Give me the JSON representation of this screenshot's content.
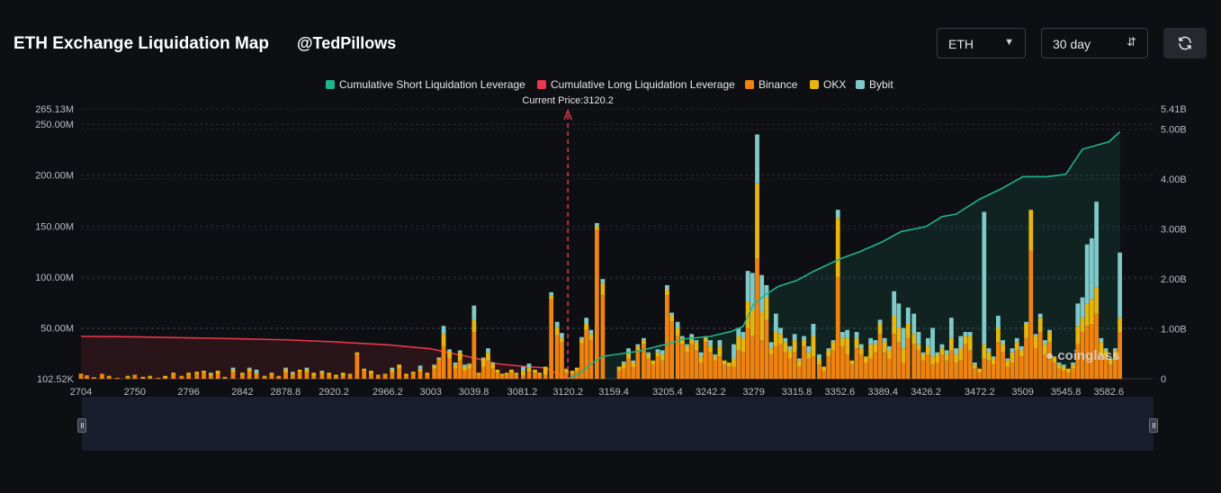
{
  "header": {
    "title": "ETH Exchange Liquidation Map",
    "watermark": "@TedPillows",
    "coin_select": "ETH",
    "range_select": "30 day"
  },
  "legend": {
    "short": "Cumulative Short Liquidation Leverage",
    "long": "Cumulative Long Liquidation Leverage",
    "binance": "Binance",
    "okx": "OKX",
    "bybit": "Bybit"
  },
  "brand": "coinglass",
  "colors": {
    "short": "#21b38a",
    "long": "#e8374a",
    "binance": "#f0820f",
    "okx": "#e8b50f",
    "bybit": "#7fc9c9"
  },
  "chart_data": {
    "type": "bar",
    "current_price_label": "Current Price:3120.2",
    "current_price": 3120.2,
    "x_tick_labels": [
      "2704",
      "2750",
      "2796",
      "2842",
      "2878.8",
      "2920.2",
      "2966.2",
      "3003",
      "3039.8",
      "3081.2",
      "3120.2",
      "3159.4",
      "3205.4",
      "3242.2",
      "3279",
      "3315.8",
      "3352.6",
      "3389.4",
      "3426.2",
      "3472.2",
      "3509",
      "3545.8",
      "3582.6"
    ],
    "x_range": [
      2704,
      3620
    ],
    "y_left_ticks": [
      "102.52K",
      "50.00M",
      "100.00M",
      "150.00M",
      "200.00M",
      "250.00M",
      "265.13M"
    ],
    "y_left_range": [
      0.10252,
      265.13
    ],
    "y_left_unit": "M",
    "y_right_ticks": [
      "0",
      "1.00B",
      "2.00B",
      "3.00B",
      "4.00B",
      "5.00B",
      "5.41B"
    ],
    "y_right_range": [
      0,
      5.41
    ],
    "y_right_unit": "B",
    "bar_width_price": 3.68,
    "bars": [
      [
        2704,
        4,
        1,
        0
      ],
      [
        2709,
        3,
        0.5,
        0
      ],
      [
        2715,
        1,
        0.5,
        0
      ],
      [
        2722,
        5,
        0,
        0
      ],
      [
        2728,
        2,
        1,
        0
      ],
      [
        2735,
        1,
        0,
        0
      ],
      [
        2744,
        2,
        1,
        0
      ],
      [
        2750,
        3,
        1,
        0
      ],
      [
        2757,
        1,
        1,
        0
      ],
      [
        2763,
        2,
        1,
        0
      ],
      [
        2770,
        1,
        0,
        0
      ],
      [
        2776,
        1,
        2,
        0
      ],
      [
        2783,
        4,
        2,
        0
      ],
      [
        2790,
        3,
        0,
        0
      ],
      [
        2796,
        4,
        2,
        0
      ],
      [
        2803,
        5,
        2,
        0
      ],
      [
        2809,
        6,
        2,
        0
      ],
      [
        2815,
        3,
        2,
        1
      ],
      [
        2821,
        5,
        3,
        0
      ],
      [
        2827,
        2,
        0,
        0
      ],
      [
        2834,
        6,
        3,
        2
      ],
      [
        2842,
        4,
        2,
        0
      ],
      [
        2848,
        7,
        3,
        1
      ],
      [
        2854,
        4,
        2,
        3
      ],
      [
        2861,
        2,
        1,
        0
      ],
      [
        2867,
        4,
        2,
        0
      ],
      [
        2873,
        3,
        0,
        0
      ],
      [
        2879,
        6,
        4,
        1
      ],
      [
        2885,
        4,
        2,
        1
      ],
      [
        2891,
        7,
        2,
        0
      ],
      [
        2897,
        6,
        3,
        2
      ],
      [
        2903,
        3,
        3,
        0
      ],
      [
        2910,
        5,
        2,
        1
      ],
      [
        2916,
        4,
        2,
        0
      ],
      [
        2922,
        2,
        2,
        0
      ],
      [
        2928,
        3,
        3,
        0
      ],
      [
        2934,
        4,
        1,
        0
      ],
      [
        2940,
        24,
        2,
        0
      ],
      [
        2946,
        8,
        2,
        0
      ],
      [
        2952,
        5,
        3,
        0
      ],
      [
        2958,
        3,
        1,
        0
      ],
      [
        2964,
        4,
        1,
        0
      ],
      [
        2970,
        6,
        3,
        2
      ],
      [
        2976,
        10,
        4,
        0
      ],
      [
        2982,
        3,
        2,
        0
      ],
      [
        2988,
        5,
        2,
        0
      ],
      [
        2994,
        7,
        3,
        3
      ],
      [
        3000,
        4,
        2,
        0
      ],
      [
        3006,
        10,
        3,
        1
      ],
      [
        3010,
        18,
        2,
        1
      ],
      [
        3014,
        32,
        12,
        8
      ],
      [
        3019,
        20,
        7,
        2
      ],
      [
        3024,
        10,
        4,
        2
      ],
      [
        3028,
        18,
        8,
        2
      ],
      [
        3032,
        8,
        4,
        2
      ],
      [
        3036,
        10,
        4,
        1
      ],
      [
        3040,
        46,
        12,
        14
      ],
      [
        3044,
        4,
        2,
        0
      ],
      [
        3048,
        12,
        8,
        1
      ],
      [
        3052,
        18,
        8,
        4
      ],
      [
        3056,
        10,
        5,
        1
      ],
      [
        3060,
        6,
        3,
        0
      ],
      [
        3064,
        3,
        2,
        0
      ],
      [
        3068,
        4,
        2,
        0
      ],
      [
        3072,
        6,
        3,
        0
      ],
      [
        3076,
        4,
        2,
        0
      ],
      [
        3082,
        3,
        5,
        4
      ],
      [
        3087,
        7,
        4,
        4
      ],
      [
        3092,
        6,
        3,
        0
      ],
      [
        3096,
        4,
        2,
        0
      ],
      [
        3101,
        4,
        8,
        0
      ],
      [
        3106,
        78,
        4,
        3
      ],
      [
        3111,
        43,
        8,
        5
      ],
      [
        3115,
        36,
        4,
        5
      ],
      [
        3119,
        6,
        4,
        0
      ],
      [
        3124,
        5,
        3,
        0
      ],
      [
        3128,
        8,
        3,
        0
      ],
      [
        3132,
        35,
        4,
        2
      ],
      [
        3136,
        48,
        6,
        6
      ],
      [
        3140,
        38,
        6,
        4
      ],
      [
        3145,
        146,
        4,
        3
      ],
      [
        3150,
        82,
        12,
        4
      ],
      [
        3155,
        0,
        0,
        0
      ],
      [
        3164,
        8,
        4,
        0
      ],
      [
        3168,
        10,
        5,
        2
      ],
      [
        3172,
        20,
        6,
        4
      ],
      [
        3176,
        12,
        4,
        2
      ],
      [
        3180,
        28,
        4,
        2
      ],
      [
        3185,
        34,
        4,
        2
      ],
      [
        3189,
        20,
        4,
        2
      ],
      [
        3193,
        14,
        4,
        0
      ],
      [
        3197,
        22,
        4,
        3
      ],
      [
        3201,
        18,
        6,
        4
      ],
      [
        3205,
        82,
        6,
        4
      ],
      [
        3209,
        56,
        6,
        3
      ],
      [
        3214,
        42,
        8,
        6
      ],
      [
        3218,
        34,
        6,
        2
      ],
      [
        3222,
        26,
        6,
        2
      ],
      [
        3226,
        34,
        6,
        4
      ],
      [
        3230,
        28,
        8,
        2
      ],
      [
        3234,
        16,
        6,
        4
      ],
      [
        3238,
        36,
        4,
        2
      ],
      [
        3242,
        26,
        6,
        6
      ],
      [
        3246,
        18,
        4,
        2
      ],
      [
        3250,
        22,
        10,
        6
      ],
      [
        3254,
        14,
        4,
        0
      ],
      [
        3258,
        12,
        4,
        0
      ],
      [
        3262,
        12,
        8,
        14
      ],
      [
        3266,
        28,
        14,
        8
      ],
      [
        3270,
        26,
        14,
        6
      ],
      [
        3274,
        50,
        26,
        30
      ],
      [
        3278,
        42,
        26,
        36
      ],
      [
        3282,
        118,
        74,
        48
      ],
      [
        3286,
        38,
        28,
        36
      ],
      [
        3290,
        58,
        22,
        12
      ],
      [
        3294,
        24,
        6,
        6
      ],
      [
        3298,
        32,
        14,
        18
      ],
      [
        3302,
        34,
        10,
        6
      ],
      [
        3306,
        26,
        10,
        4
      ],
      [
        3310,
        20,
        8,
        4
      ],
      [
        3314,
        26,
        12,
        6
      ],
      [
        3318,
        12,
        6,
        2
      ],
      [
        3322,
        32,
        6,
        4
      ],
      [
        3326,
        20,
        6,
        6
      ],
      [
        3330,
        22,
        20,
        12
      ],
      [
        3335,
        14,
        6,
        4
      ],
      [
        3339,
        8,
        4,
        0
      ],
      [
        3343,
        22,
        6,
        2
      ],
      [
        3347,
        28,
        8,
        2
      ],
      [
        3351,
        100,
        58,
        8
      ],
      [
        3355,
        32,
        8,
        6
      ],
      [
        3359,
        24,
        16,
        8
      ],
      [
        3363,
        14,
        4,
        0
      ],
      [
        3367,
        30,
        10,
        6
      ],
      [
        3371,
        24,
        6,
        4
      ],
      [
        3375,
        16,
        6,
        0
      ],
      [
        3379,
        20,
        14,
        6
      ],
      [
        3383,
        26,
        8,
        4
      ],
      [
        3387,
        44,
        10,
        4
      ],
      [
        3391,
        26,
        10,
        4
      ],
      [
        3395,
        20,
        8,
        4
      ],
      [
        3399,
        44,
        18,
        24
      ],
      [
        3403,
        36,
        14,
        24
      ],
      [
        3407,
        16,
        14,
        20
      ],
      [
        3411,
        40,
        14,
        16
      ],
      [
        3416,
        34,
        10,
        20
      ],
      [
        3420,
        28,
        6,
        12
      ],
      [
        3424,
        18,
        6,
        2
      ],
      [
        3428,
        24,
        8,
        8
      ],
      [
        3432,
        14,
        8,
        28
      ],
      [
        3436,
        16,
        8,
        2
      ],
      [
        3440,
        24,
        6,
        4
      ],
      [
        3444,
        18,
        6,
        4
      ],
      [
        3448,
        28,
        12,
        20
      ],
      [
        3452,
        16,
        8,
        6
      ],
      [
        3456,
        18,
        12,
        12
      ],
      [
        3460,
        34,
        8,
        4
      ],
      [
        3464,
        28,
        14,
        4
      ],
      [
        3468,
        10,
        4,
        2
      ],
      [
        3472,
        6,
        4,
        0
      ],
      [
        3476,
        20,
        14,
        130
      ],
      [
        3480,
        18,
        8,
        4
      ],
      [
        3484,
        14,
        6,
        2
      ],
      [
        3488,
        36,
        14,
        12
      ],
      [
        3492,
        26,
        8,
        4
      ],
      [
        3496,
        12,
        6,
        2
      ],
      [
        3500,
        16,
        10,
        4
      ],
      [
        3504,
        28,
        8,
        4
      ],
      [
        3508,
        22,
        6,
        4
      ],
      [
        3512,
        40,
        14,
        2
      ],
      [
        3516,
        126,
        40,
        0
      ],
      [
        3520,
        30,
        12,
        2
      ],
      [
        3524,
        46,
        14,
        4
      ],
      [
        3528,
        24,
        10,
        4
      ],
      [
        3532,
        36,
        10,
        2
      ],
      [
        3536,
        16,
        6,
        0
      ],
      [
        3540,
        10,
        4,
        2
      ],
      [
        3544,
        8,
        4,
        2
      ],
      [
        3548,
        6,
        4,
        0
      ],
      [
        3552,
        10,
        4,
        2
      ],
      [
        3556,
        34,
        18,
        22
      ],
      [
        3560,
        46,
        14,
        20
      ],
      [
        3564,
        52,
        22,
        58
      ],
      [
        3568,
        54,
        24,
        60
      ],
      [
        3572,
        64,
        26,
        84
      ],
      [
        3576,
        22,
        14,
        4
      ],
      [
        3580,
        20,
        8,
        2
      ],
      [
        3584,
        14,
        6,
        0
      ],
      [
        3588,
        20,
        8,
        2
      ],
      [
        3592,
        46,
        14,
        64
      ]
    ],
    "long_cumulative": [
      [
        2704,
        0.85
      ],
      [
        2750,
        0.84
      ],
      [
        2796,
        0.82
      ],
      [
        2842,
        0.8
      ],
      [
        2878.8,
        0.78
      ],
      [
        2920.2,
        0.74
      ],
      [
        2966.2,
        0.68
      ],
      [
        3003,
        0.6
      ],
      [
        3039.8,
        0.42
      ],
      [
        3060,
        0.3
      ],
      [
        3081.2,
        0.25
      ],
      [
        3100,
        0.22
      ],
      [
        3106,
        0.16
      ],
      [
        3111,
        0.1
      ],
      [
        3115,
        0.06
      ],
      [
        3120.2,
        0.0
      ]
    ],
    "short_cumulative": [
      [
        3120.2,
        0.0
      ],
      [
        3130,
        0.1
      ],
      [
        3140,
        0.3
      ],
      [
        3150,
        0.45
      ],
      [
        3159.4,
        0.48
      ],
      [
        3180,
        0.55
      ],
      [
        3205.4,
        0.7
      ],
      [
        3220,
        0.8
      ],
      [
        3242.2,
        0.85
      ],
      [
        3260,
        0.95
      ],
      [
        3270,
        1.05
      ],
      [
        3279,
        1.5
      ],
      [
        3290,
        1.7
      ],
      [
        3300,
        1.85
      ],
      [
        3315.8,
        1.97
      ],
      [
        3330,
        2.15
      ],
      [
        3352.6,
        2.4
      ],
      [
        3370,
        2.55
      ],
      [
        3389.4,
        2.75
      ],
      [
        3405,
        2.95
      ],
      [
        3426.2,
        3.05
      ],
      [
        3440,
        3.25
      ],
      [
        3452,
        3.3
      ],
      [
        3472.2,
        3.6
      ],
      [
        3490,
        3.8
      ],
      [
        3509,
        4.05
      ],
      [
        3530,
        4.05
      ],
      [
        3545.8,
        4.1
      ],
      [
        3560,
        4.6
      ],
      [
        3582.6,
        4.75
      ],
      [
        3592,
        4.95
      ]
    ]
  }
}
